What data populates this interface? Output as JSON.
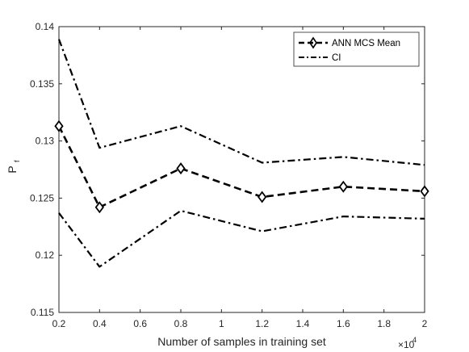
{
  "chart_data": {
    "type": "line",
    "xlabel": "Number of samples in training set",
    "ylabel": "P",
    "ylabel_sub": "f",
    "x_multiplier": "×10",
    "x_multiplier_exp": "4",
    "xlim": [
      0.2,
      2
    ],
    "ylim": [
      0.115,
      0.14
    ],
    "xticks": [
      "0.2",
      "0.4",
      "0.6",
      "0.8",
      "1",
      "1.2",
      "1.4",
      "1.6",
      "1.8",
      "2"
    ],
    "yticks": [
      "0.115",
      "0.12",
      "0.125",
      "0.13",
      "0.135",
      "0.14"
    ],
    "legend_position": "top-right",
    "series": [
      {
        "name": "ANN MCS Mean",
        "style": "dashed",
        "marker": "diamond",
        "x": [
          0.2,
          0.4,
          0.8,
          1.2,
          1.6,
          2.0
        ],
        "y": [
          0.1313,
          0.1242,
          0.1276,
          0.1251,
          0.126,
          0.1256
        ]
      },
      {
        "name": "CI",
        "style": "dashdot",
        "marker": "none",
        "x": [
          0.2,
          0.4,
          0.8,
          1.2,
          1.6,
          2.0
        ],
        "y": [
          0.1389,
          0.1294,
          0.1313,
          0.1281,
          0.1286,
          0.1279
        ]
      },
      {
        "name": "",
        "style": "dashdot",
        "marker": "none",
        "x": [
          0.2,
          0.4,
          0.8,
          1.2,
          1.6,
          2.0
        ],
        "y": [
          0.1237,
          0.119,
          0.1239,
          0.1221,
          0.1234,
          0.1232
        ]
      }
    ],
    "grid": false,
    "colors": {
      "line": "#000000",
      "axis": "#262626",
      "background": "#ffffff"
    }
  }
}
